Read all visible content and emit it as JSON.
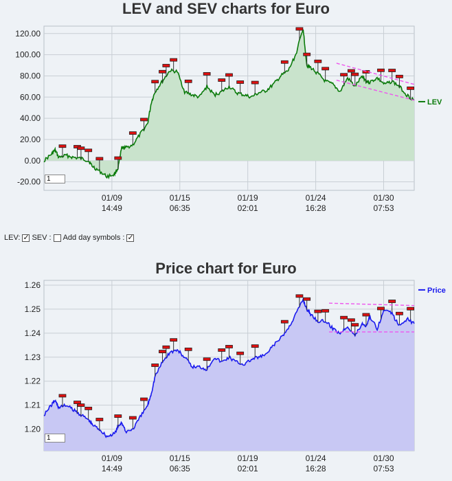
{
  "chart_data": [
    {
      "type": "area",
      "title": "LEV and SEV charts for Euro",
      "x_ticks": [
        [
          "01/09",
          "14:49"
        ],
        [
          "01/15",
          "06:35"
        ],
        [
          "01/19",
          "02:01"
        ],
        [
          "01/24",
          "16:28"
        ],
        [
          "01/30",
          "07:53"
        ]
      ],
      "y_ticks": [
        "-20.00",
        "0.00",
        "20.00",
        "40.00",
        "60.00",
        "80.00",
        "100.00",
        "120.00"
      ],
      "ylim": [
        -28,
        127
      ],
      "series": [
        {
          "name": "LEV",
          "color": "#0a7a0a",
          "fill": "#c9e3cc",
          "x": [
            0,
            2,
            3,
            4,
            6,
            8,
            10,
            12,
            13,
            15,
            17,
            19,
            20,
            21,
            22,
            24,
            26,
            28,
            29,
            30,
            32,
            34,
            36,
            38,
            40,
            42,
            44,
            46,
            48,
            50,
            52,
            54,
            56,
            58,
            60,
            62,
            64,
            66,
            68,
            70,
            71,
            72,
            74,
            76,
            78,
            80,
            82,
            84,
            86,
            87,
            88,
            90,
            92,
            94,
            96,
            98,
            100
          ],
          "y": [
            0,
            6,
            10,
            3,
            5,
            3,
            2,
            0,
            -5,
            -10,
            -15,
            -13,
            -7,
            12,
            12,
            15,
            25,
            35,
            55,
            65,
            75,
            85,
            84,
            65,
            62,
            60,
            70,
            62,
            65,
            70,
            64,
            62,
            60,
            64,
            66,
            72,
            80,
            85,
            100,
            125,
            90,
            88,
            82,
            75,
            72,
            65,
            78,
            70,
            80,
            75,
            74,
            78,
            72,
            75,
            70,
            62,
            57
          ]
        }
      ],
      "trendlines": [
        {
          "color": "#ee55ee",
          "points": [
            [
              79,
              92
            ],
            [
              100,
              72
            ]
          ]
        },
        {
          "color": "#ee55ee",
          "points": [
            [
              79,
              76
            ],
            [
              100,
              57
            ]
          ]
        }
      ],
      "markers_x": [
        5,
        9,
        10,
        12,
        15,
        20,
        24,
        27,
        30,
        32,
        33,
        35,
        39,
        44,
        48,
        50,
        53,
        57,
        65,
        69,
        71,
        74,
        76,
        81,
        83,
        84,
        87,
        91,
        94,
        96,
        99
      ],
      "legend": "LEV",
      "input_value": "1"
    },
    {
      "type": "area",
      "title": "Price chart for Euro",
      "x_ticks": [
        [
          "01/09",
          "14:49"
        ],
        [
          "01/15",
          "06:35"
        ],
        [
          "01/19",
          "02:01"
        ],
        [
          "01/24",
          "16:28"
        ],
        [
          "01/30",
          "07:53"
        ]
      ],
      "y_ticks": [
        "1.20",
        "1.21",
        "1.22",
        "1.23",
        "1.24",
        "1.25",
        "1.26"
      ],
      "ylim": [
        1.191,
        1.262
      ],
      "series": [
        {
          "name": "Price",
          "color": "#1a1aee",
          "fill": "#c8c8f4",
          "x": [
            0,
            2,
            3,
            4,
            6,
            8,
            10,
            12,
            13,
            15,
            17,
            19,
            20,
            21,
            22,
            24,
            26,
            28,
            29,
            30,
            32,
            34,
            36,
            38,
            40,
            42,
            44,
            46,
            48,
            50,
            52,
            54,
            56,
            58,
            60,
            62,
            64,
            66,
            68,
            70,
            71,
            72,
            74,
            76,
            78,
            80,
            82,
            84,
            86,
            87,
            88,
            90,
            92,
            94,
            96,
            98,
            100
          ],
          "y": [
            1.206,
            1.21,
            1.212,
            1.209,
            1.21,
            1.208,
            1.206,
            1.204,
            1.202,
            1.2,
            1.197,
            1.198,
            1.201,
            1.203,
            1.199,
            1.2,
            1.205,
            1.21,
            1.215,
            1.222,
            1.228,
            1.232,
            1.233,
            1.23,
            1.226,
            1.226,
            1.225,
            1.23,
            1.228,
            1.23,
            1.228,
            1.227,
            1.229,
            1.23,
            1.231,
            1.235,
            1.238,
            1.242,
            1.248,
            1.254,
            1.25,
            1.248,
            1.245,
            1.245,
            1.242,
            1.24,
            1.243,
            1.239,
            1.244,
            1.243,
            1.247,
            1.242,
            1.25,
            1.248,
            1.243,
            1.246,
            1.244
          ]
        }
      ],
      "trendlines": [
        {
          "color": "#ee55ee",
          "points": [
            [
              77,
              1.2525
            ],
            [
              100,
              1.2515
            ]
          ]
        },
        {
          "color": "#ee55ee",
          "points": [
            [
              77,
              1.2405
            ],
            [
              100,
              1.2405
            ]
          ]
        }
      ],
      "markers_x": [
        5,
        9,
        10,
        12,
        15,
        20,
        24,
        27,
        30,
        32,
        33,
        35,
        39,
        44,
        48,
        50,
        53,
        57,
        65,
        69,
        71,
        74,
        76,
        81,
        83,
        84,
        87,
        91,
        94,
        96,
        99
      ],
      "legend": "Price",
      "input_value": "1"
    }
  ],
  "controls": {
    "lev_label": "LEV:",
    "sev_label": "SEV :",
    "day_label": "Add day symbols :",
    "lev_checked": true,
    "sev_checked": false,
    "day_checked": true
  }
}
